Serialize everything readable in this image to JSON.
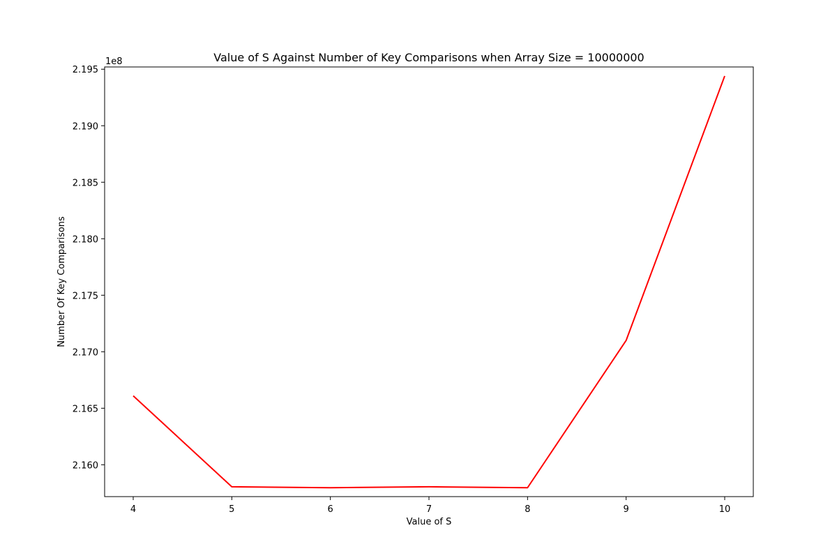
{
  "chart_data": {
    "type": "line",
    "title": "Value of S Against Number of Key Comparisons when Array Size = 10000000",
    "xlabel": "Value of S",
    "ylabel": "Number Of Key Comparisons",
    "y_offset_label": "1e8",
    "x": [
      4,
      5,
      6,
      7,
      8,
      9,
      10
    ],
    "series": [
      {
        "values": [
          216610000,
          215805000,
          215797000,
          215805000,
          215797000,
          217100000,
          219440000
        ],
        "color": "#ff0000"
      }
    ],
    "xlim": [
      3.71,
      10.29
    ],
    "ylim": [
      215718000,
      219520000
    ],
    "x_ticks": [
      4,
      5,
      6,
      7,
      8,
      9,
      10
    ],
    "x_tick_labels": [
      "4",
      "5",
      "6",
      "7",
      "8",
      "9",
      "10"
    ],
    "y_ticks": [
      216000000,
      216500000,
      217000000,
      217500000,
      218000000,
      218500000,
      219000000,
      219500000
    ],
    "y_tick_labels": [
      "2.160",
      "2.165",
      "2.170",
      "2.175",
      "2.180",
      "2.185",
      "2.190",
      "2.195"
    ],
    "grid": false,
    "legend": "none"
  }
}
